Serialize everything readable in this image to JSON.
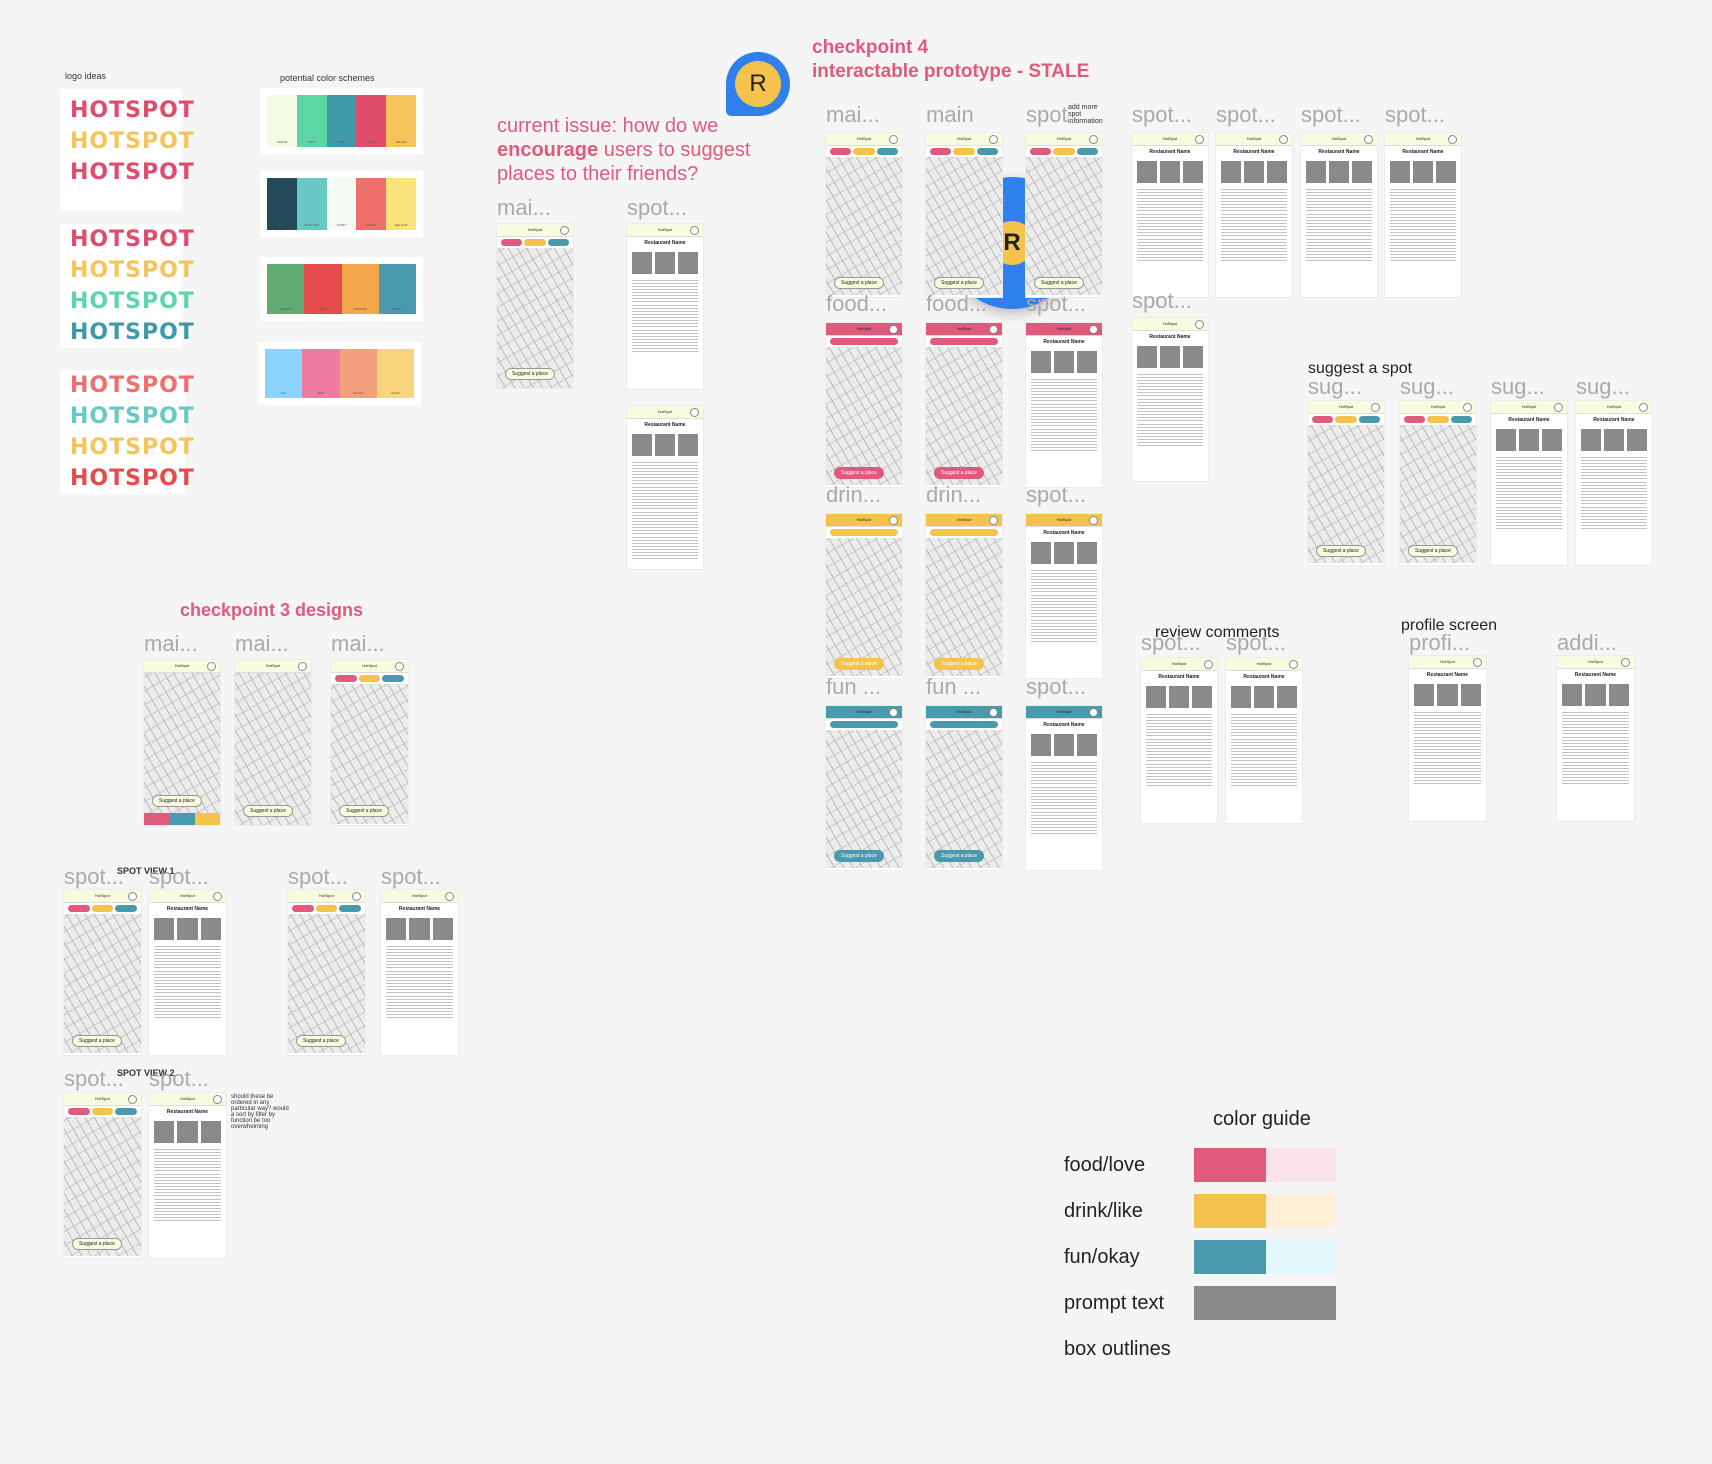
{
  "colors": {
    "food": "#e05a7b",
    "drink": "#f5c34b",
    "fun": "#4a9aad",
    "prompt": "#8a8a8a",
    "outline": "#f4f4f4",
    "food_light": "#fbe3e9",
    "drink_light": "#fdf0d6",
    "fun_light": "#e2f7fb",
    "avatar_blue": "#2f80ed",
    "avatar_yellow": "#f5c34b"
  },
  "logo_section": {
    "label": "logo ideas",
    "logo_text": "HOTSPOT"
  },
  "color_schemes": {
    "label": "potential color schemes",
    "schemes": [
      {
        "swatches": [
          {
            "color": "#f3fbe6",
            "name": "CREAM"
          },
          {
            "color": "#5dd6a5",
            "name": "MINT"
          },
          {
            "color": "#3e9aa8",
            "name": "TEAL"
          },
          {
            "color": "#e04d6c",
            "name": "ROSE"
          },
          {
            "color": "#f5c45a",
            "name": "MELON"
          }
        ]
      },
      {
        "swatches": [
          {
            "color": "#234b57",
            "name": "NAVY"
          },
          {
            "color": "#67c9c2",
            "name": "SEAFOAM"
          },
          {
            "color": "#f3fbf3",
            "name": "IVORY"
          },
          {
            "color": "#ef6f6c",
            "name": "CORAL"
          },
          {
            "color": "#fbe27a",
            "name": "MELLOW"
          }
        ]
      },
      {
        "swatches": [
          {
            "color": "#60ac73",
            "name": "GREEN"
          },
          {
            "color": "#e54b4b",
            "name": "RED"
          },
          {
            "color": "#f2a74a",
            "name": "ORANGE"
          },
          {
            "color": "#4a9aad",
            "name": "BLUE"
          }
        ]
      },
      {
        "swatches": [
          {
            "color": "#8ad4ff",
            "name": "SKY"
          },
          {
            "color": "#f07aa3",
            "name": "PINK"
          },
          {
            "color": "#f3a07c",
            "name": "PEACH"
          },
          {
            "color": "#fad47c",
            "name": "SAND"
          }
        ]
      }
    ]
  },
  "checkpoint4": {
    "line1": "checkpoint 4",
    "line2": "interactable prototype - STALE"
  },
  "issue": {
    "pre": "current issue: how do we",
    "bold": "encourage",
    "post": "users to suggest",
    "line3": "places to their friends?"
  },
  "avatar": {
    "letter": "R"
  },
  "checkpoint3": {
    "title": "checkpoint 3 designs"
  },
  "frames": {
    "issue_frames": [
      "mai...",
      "spot..."
    ],
    "cp3_frames": [
      "mai...",
      "mai...",
      "mai..."
    ],
    "cp4_row1": [
      "mai...",
      "main",
      "spot",
      "spot...",
      "spot...",
      "spot...",
      "spot..."
    ],
    "cp4_row2": [
      "food...",
      "food...",
      "spot...",
      "spot..."
    ],
    "cp4_row3": [
      "drin...",
      "drin...",
      "spot..."
    ],
    "cp4_row4": [
      "fun ...",
      "fun ...",
      "spot..."
    ],
    "spot_view_frames": [
      "spot...",
      "spot...",
      "spot...",
      "spot..."
    ],
    "spot_view2_frames": [
      "spot...",
      "spot..."
    ],
    "suggest_frames": [
      "sug...",
      "sug...",
      "sug...",
      "sug..."
    ],
    "review_frames": [
      "spot...",
      "spot..."
    ],
    "profile_frames": [
      "profi...",
      "addi..."
    ]
  },
  "notes": {
    "add_more": "add more spot information",
    "spot_view_1": "SPOT VIEW 1",
    "spot_view_2": "SPOT VIEW 2",
    "ordered": "should these be ordered in any particular way? would a sort by filter by function be too overwhelming",
    "suggest_a_spot": "suggest a spot",
    "review_comments": "review comments",
    "profile_screen": "profile screen"
  },
  "phone_ui": {
    "app_name": "HotSpot",
    "suggest_pill": "Suggest a place",
    "restaurant": "Restaurant Name"
  },
  "color_guide": {
    "title": "color guide",
    "rows": [
      {
        "label": "food/love",
        "main": "#e05a7b",
        "light": "#fbe3e9"
      },
      {
        "label": "drink/like",
        "main": "#f5c34b",
        "light": "#fdf0d6"
      },
      {
        "label": "fun/okay",
        "main": "#4a9aad",
        "light": "#e2f7fb"
      },
      {
        "label": "prompt text",
        "main": "#8a8a8a",
        "light": "#8a8a8a"
      },
      {
        "label": "box outlines",
        "main": "#f4f4f4",
        "light": "#f4f4f4"
      }
    ]
  }
}
